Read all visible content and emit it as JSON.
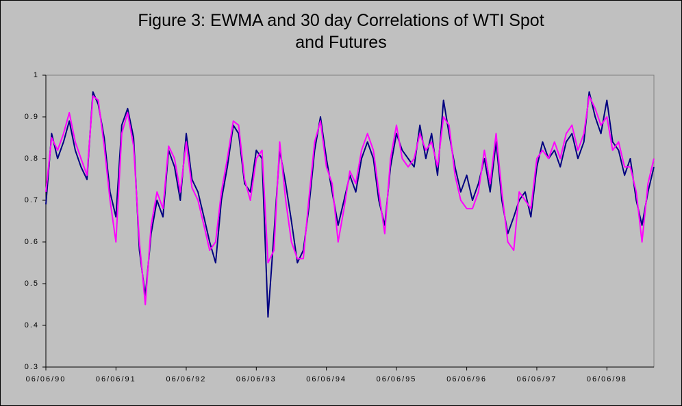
{
  "chart_data": {
    "type": "line",
    "title": "Figure 3: EWMA and 30 day Correlations of WTI Spot and Futures",
    "x": [
      "06/06/90",
      "06/07/90",
      "06/08/90",
      "06/09/90",
      "06/10/90",
      "06/11/90",
      "06/12/90",
      "06/01/91",
      "06/02/91",
      "06/03/91",
      "06/04/91",
      "06/05/91",
      "06/06/91",
      "06/07/91",
      "06/08/91",
      "06/09/91",
      "06/10/91",
      "06/11/91",
      "06/12/91",
      "06/01/92",
      "06/02/92",
      "06/03/92",
      "06/04/92",
      "06/05/92",
      "06/06/92",
      "06/07/92",
      "06/08/92",
      "06/09/92",
      "06/10/92",
      "06/11/92",
      "06/12/92",
      "06/01/93",
      "06/02/93",
      "06/03/93",
      "06/04/93",
      "06/05/93",
      "06/06/93",
      "06/07/93",
      "06/08/93",
      "06/09/93",
      "06/10/93",
      "06/11/93",
      "06/12/93",
      "06/01/94",
      "06/02/94",
      "06/03/94",
      "06/04/94",
      "06/05/94",
      "06/06/94",
      "06/07/94",
      "06/08/94",
      "06/09/94",
      "06/10/94",
      "06/11/94",
      "06/12/94",
      "06/01/95",
      "06/02/95",
      "06/03/95",
      "06/04/95",
      "06/05/95",
      "06/06/95",
      "06/07/95",
      "06/08/95",
      "06/09/95",
      "06/10/95",
      "06/11/95",
      "06/12/95",
      "06/01/96",
      "06/02/96",
      "06/03/96",
      "06/04/96",
      "06/05/96",
      "06/06/96",
      "06/07/96",
      "06/08/96",
      "06/09/96",
      "06/10/96",
      "06/11/96",
      "06/12/96",
      "06/01/97",
      "06/02/97",
      "06/03/97",
      "06/04/97",
      "06/05/97",
      "06/06/97",
      "06/07/97",
      "06/08/97",
      "06/09/97",
      "06/10/97",
      "06/11/97",
      "06/12/97",
      "06/01/98",
      "06/02/98",
      "06/03/98",
      "06/04/98",
      "06/05/98",
      "06/06/98",
      "06/07/98",
      "06/08/98",
      "06/09/98",
      "06/10/98",
      "06/11/98",
      "06/12/98",
      "06/01/99",
      "06/02/99"
    ],
    "series": [
      {
        "color": "#000080",
        "values": [
          0.69,
          0.86,
          0.8,
          0.84,
          0.89,
          0.82,
          0.78,
          0.75,
          0.96,
          0.93,
          0.85,
          0.72,
          0.66,
          0.88,
          0.92,
          0.85,
          0.58,
          0.47,
          0.62,
          0.7,
          0.66,
          0.82,
          0.78,
          0.7,
          0.86,
          0.75,
          0.72,
          0.66,
          0.6,
          0.55,
          0.7,
          0.78,
          0.88,
          0.86,
          0.74,
          0.72,
          0.82,
          0.8,
          0.42,
          0.62,
          0.82,
          0.74,
          0.65,
          0.55,
          0.58,
          0.68,
          0.82,
          0.9,
          0.8,
          0.72,
          0.64,
          0.7,
          0.76,
          0.72,
          0.8,
          0.84,
          0.8,
          0.7,
          0.64,
          0.78,
          0.86,
          0.82,
          0.8,
          0.78,
          0.88,
          0.8,
          0.86,
          0.76,
          0.94,
          0.86,
          0.78,
          0.72,
          0.76,
          0.7,
          0.74,
          0.8,
          0.72,
          0.84,
          0.7,
          0.62,
          0.66,
          0.7,
          0.72,
          0.66,
          0.78,
          0.84,
          0.8,
          0.82,
          0.78,
          0.84,
          0.86,
          0.8,
          0.84,
          0.96,
          0.9,
          0.86,
          0.94,
          0.84,
          0.82,
          0.76,
          0.8,
          0.7,
          0.64,
          0.72,
          0.78
        ]
      },
      {
        "color": "#ff00ff",
        "values": [
          0.72,
          0.85,
          0.82,
          0.86,
          0.91,
          0.84,
          0.8,
          0.76,
          0.95,
          0.94,
          0.83,
          0.7,
          0.6,
          0.86,
          0.91,
          0.83,
          0.6,
          0.45,
          0.64,
          0.72,
          0.68,
          0.83,
          0.8,
          0.72,
          0.84,
          0.73,
          0.7,
          0.64,
          0.58,
          0.6,
          0.72,
          0.8,
          0.89,
          0.88,
          0.75,
          0.7,
          0.8,
          0.82,
          0.55,
          0.58,
          0.84,
          0.7,
          0.6,
          0.56,
          0.56,
          0.7,
          0.84,
          0.89,
          0.78,
          0.74,
          0.6,
          0.68,
          0.77,
          0.74,
          0.82,
          0.86,
          0.82,
          0.72,
          0.62,
          0.8,
          0.88,
          0.8,
          0.78,
          0.8,
          0.86,
          0.82,
          0.84,
          0.78,
          0.9,
          0.88,
          0.76,
          0.7,
          0.68,
          0.68,
          0.72,
          0.82,
          0.74,
          0.86,
          0.72,
          0.6,
          0.58,
          0.72,
          0.7,
          0.68,
          0.8,
          0.82,
          0.8,
          0.84,
          0.8,
          0.86,
          0.88,
          0.82,
          0.86,
          0.95,
          0.92,
          0.88,
          0.9,
          0.82,
          0.84,
          0.78,
          0.78,
          0.72,
          0.6,
          0.74,
          0.8
        ]
      }
    ],
    "ylim": [
      0.3,
      1
    ],
    "yticks": [
      0.3,
      0.4,
      0.5,
      0.6,
      0.7,
      0.8,
      0.9,
      1
    ],
    "xticks": [
      "06/06/90",
      "06/06/91",
      "06/06/92",
      "06/06/93",
      "06/06/94",
      "06/06/95",
      "06/06/96",
      "06/06/97",
      "06/06/98"
    ]
  }
}
